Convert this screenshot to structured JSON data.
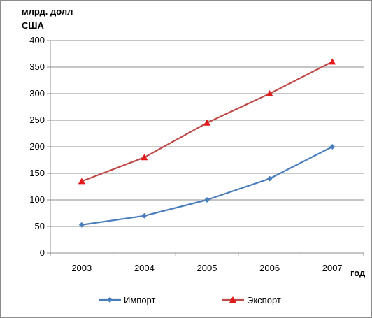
{
  "chart_data": {
    "type": "line",
    "ylabel_line1": "млрд. долл",
    "ylabel_line2": "США",
    "xlabel": "год",
    "categories": [
      "2003",
      "2004",
      "2005",
      "2006",
      "2007"
    ],
    "ylim": [
      0,
      400
    ],
    "yticks": [
      0,
      50,
      100,
      150,
      200,
      250,
      300,
      350,
      400
    ],
    "grid": true,
    "legend_position": "bottom",
    "series": [
      {
        "name": "Импорт",
        "values": [
          53,
          70,
          100,
          140,
          200
        ],
        "color": "#4a7ebb",
        "marker": "diamond"
      },
      {
        "name": "Экспорт",
        "values": [
          135,
          180,
          245,
          300,
          360
        ],
        "color": "#be4b48",
        "marker": "triangle"
      }
    ]
  }
}
